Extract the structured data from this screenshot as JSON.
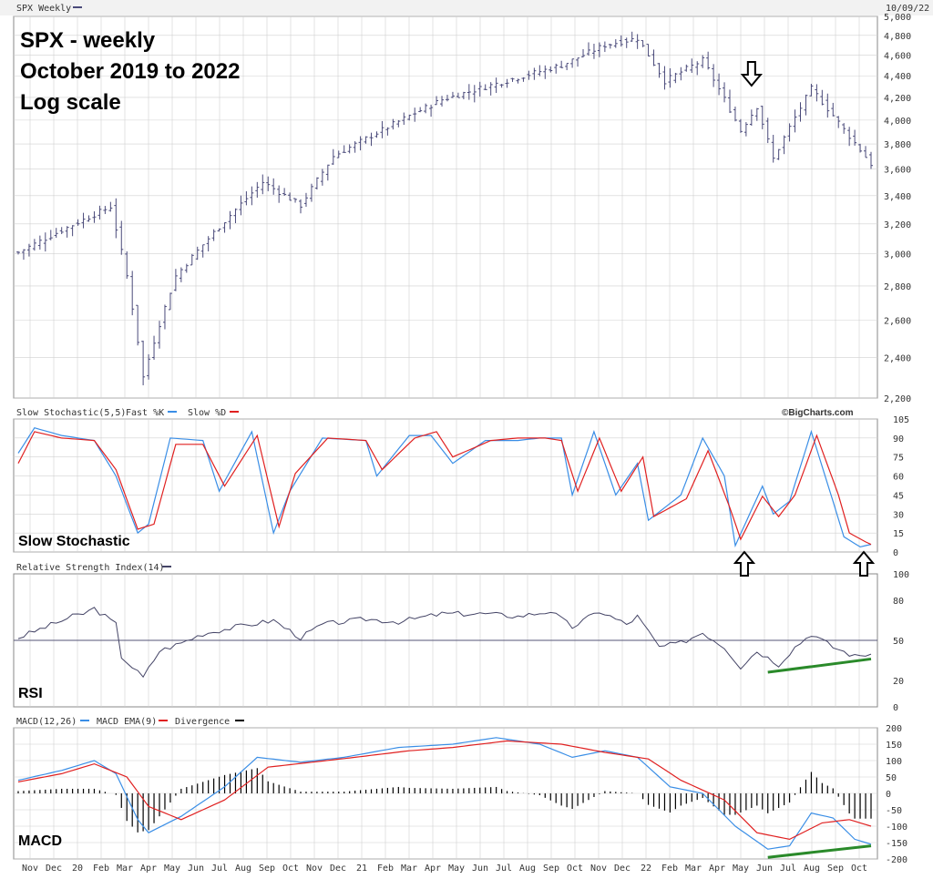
{
  "header": {
    "symbol_label": "SPX Weekly",
    "date_label": "10/09/22",
    "credit": "©BigCharts.com"
  },
  "annotations": {
    "title_line1": "SPX - weekly",
    "title_line2": "October 2019 to 2022",
    "title_line3": "Log scale",
    "stoch_label": "Slow Stochastic",
    "rsi_label": "RSI",
    "macd_label": "MACD"
  },
  "colors": {
    "price_bar": "#4a4a7a",
    "grid": "#d0d0d0",
    "fast_k": "#3a8ee6",
    "slow_d": "#e02020",
    "rsi_line": "#444466",
    "divergence": "#000000",
    "trend_line": "#2a8a2a",
    "panel_border": "#888888"
  },
  "chart_data": [
    {
      "type": "ohlc",
      "title": "SPX Weekly",
      "scale": "log",
      "ylim": [
        2200,
        5000
      ],
      "yticks": [
        2200,
        2400,
        2600,
        2800,
        3000,
        3200,
        3400,
        3600,
        3800,
        4000,
        4200,
        4400,
        4600,
        4800,
        5000
      ],
      "ytick_labels": [
        "2,200",
        "2,400",
        "2,600",
        "2,800",
        "3,000",
        "3,200",
        "3,400",
        "3,600",
        "3,800",
        "4,000",
        "4,200",
        "4,400",
        "4,600",
        "4,800",
        "5,000"
      ],
      "x_labels": [
        "Nov",
        "Dec",
        "20",
        "Feb",
        "Mar",
        "Apr",
        "May",
        "Jun",
        "Jul",
        "Aug",
        "Sep",
        "Oct",
        "Nov",
        "Dec",
        "21",
        "Feb",
        "Mar",
        "Apr",
        "May",
        "Jun",
        "Jul",
        "Aug",
        "Sep",
        "Oct",
        "Nov",
        "Dec",
        "22",
        "Feb",
        "Mar",
        "Apr",
        "May",
        "Jun",
        "Jul",
        "Aug",
        "Sep",
        "Oct"
      ],
      "weeks": 158,
      "key_closes": [
        {
          "week": 0,
          "value": 3010
        },
        {
          "week": 17,
          "value": 3320
        },
        {
          "week": 20,
          "value": 2860
        },
        {
          "week": 23,
          "value": 2300
        },
        {
          "week": 29,
          "value": 2860
        },
        {
          "week": 45,
          "value": 3500
        },
        {
          "week": 52,
          "value": 3330
        },
        {
          "week": 58,
          "value": 3700
        },
        {
          "week": 78,
          "value": 4180
        },
        {
          "week": 100,
          "value": 4500
        },
        {
          "week": 108,
          "value": 4700
        },
        {
          "week": 114,
          "value": 4770
        },
        {
          "week": 119,
          "value": 4350
        },
        {
          "week": 126,
          "value": 4550
        },
        {
          "week": 133,
          "value": 3910
        },
        {
          "week": 136,
          "value": 4120
        },
        {
          "week": 139,
          "value": 3680
        },
        {
          "week": 146,
          "value": 4280
        },
        {
          "week": 152,
          "value": 3920
        },
        {
          "week": 157,
          "value": 3640
        }
      ],
      "arrows": [
        {
          "week": 135,
          "direction": "down"
        }
      ]
    },
    {
      "type": "line",
      "title": "Slow Stochastic(5,5) Fast %K Slow %D",
      "ylim": [
        0,
        105
      ],
      "yticks": [
        0,
        15,
        30,
        45,
        60,
        75,
        90,
        105
      ],
      "legend_items": [
        "Slow Stochastic(5,5)",
        "Fast %K",
        "Slow %D"
      ],
      "series": [
        {
          "name": "Fast %K",
          "key_points": [
            {
              "week": 0,
              "value": 78
            },
            {
              "week": 3,
              "value": 98
            },
            {
              "week": 8,
              "value": 92
            },
            {
              "week": 14,
              "value": 88
            },
            {
              "week": 18,
              "value": 60
            },
            {
              "week": 22,
              "value": 15
            },
            {
              "week": 24,
              "value": 22
            },
            {
              "week": 28,
              "value": 90
            },
            {
              "week": 34,
              "value": 88
            },
            {
              "week": 37,
              "value": 48
            },
            {
              "week": 43,
              "value": 95
            },
            {
              "week": 47,
              "value": 15
            },
            {
              "week": 50,
              "value": 48
            },
            {
              "week": 56,
              "value": 90
            },
            {
              "week": 64,
              "value": 88
            },
            {
              "week": 66,
              "value": 60
            },
            {
              "week": 72,
              "value": 92
            },
            {
              "week": 76,
              "value": 92
            },
            {
              "week": 80,
              "value": 70
            },
            {
              "week": 86,
              "value": 88
            },
            {
              "week": 92,
              "value": 88
            },
            {
              "week": 96,
              "value": 90
            },
            {
              "week": 100,
              "value": 90
            },
            {
              "week": 102,
              "value": 45
            },
            {
              "week": 106,
              "value": 95
            },
            {
              "week": 110,
              "value": 45
            },
            {
              "week": 114,
              "value": 70
            },
            {
              "week": 116,
              "value": 25
            },
            {
              "week": 122,
              "value": 45
            },
            {
              "week": 126,
              "value": 90
            },
            {
              "week": 130,
              "value": 60
            },
            {
              "week": 132,
              "value": 5
            },
            {
              "week": 137,
              "value": 52
            },
            {
              "week": 139,
              "value": 30
            },
            {
              "week": 142,
              "value": 40
            },
            {
              "week": 146,
              "value": 95
            },
            {
              "week": 150,
              "value": 40
            },
            {
              "week": 152,
              "value": 12
            },
            {
              "week": 155,
              "value": 4
            },
            {
              "week": 157,
              "value": 6
            }
          ]
        },
        {
          "name": "Slow %D",
          "key_points": [
            {
              "week": 0,
              "value": 70
            },
            {
              "week": 3,
              "value": 95
            },
            {
              "week": 8,
              "value": 90
            },
            {
              "week": 14,
              "value": 88
            },
            {
              "week": 18,
              "value": 65
            },
            {
              "week": 22,
              "value": 18
            },
            {
              "week": 25,
              "value": 22
            },
            {
              "week": 29,
              "value": 85
            },
            {
              "week": 34,
              "value": 85
            },
            {
              "week": 38,
              "value": 52
            },
            {
              "week": 44,
              "value": 92
            },
            {
              "week": 48,
              "value": 20
            },
            {
              "week": 51,
              "value": 62
            },
            {
              "week": 57,
              "value": 90
            },
            {
              "week": 64,
              "value": 88
            },
            {
              "week": 67,
              "value": 65
            },
            {
              "week": 73,
              "value": 90
            },
            {
              "week": 77,
              "value": 95
            },
            {
              "week": 80,
              "value": 75
            },
            {
              "week": 87,
              "value": 88
            },
            {
              "week": 92,
              "value": 90
            },
            {
              "week": 97,
              "value": 90
            },
            {
              "week": 100,
              "value": 88
            },
            {
              "week": 103,
              "value": 48
            },
            {
              "week": 107,
              "value": 90
            },
            {
              "week": 111,
              "value": 48
            },
            {
              "week": 115,
              "value": 75
            },
            {
              "week": 117,
              "value": 28
            },
            {
              "week": 123,
              "value": 42
            },
            {
              "week": 127,
              "value": 80
            },
            {
              "week": 131,
              "value": 35
            },
            {
              "week": 133,
              "value": 10
            },
            {
              "week": 137,
              "value": 44
            },
            {
              "week": 140,
              "value": 28
            },
            {
              "week": 143,
              "value": 45
            },
            {
              "week": 147,
              "value": 92
            },
            {
              "week": 151,
              "value": 45
            },
            {
              "week": 153,
              "value": 15
            },
            {
              "week": 156,
              "value": 8
            },
            {
              "week": 157,
              "value": 6
            }
          ]
        }
      ],
      "arrows": [
        {
          "week": 132,
          "direction": "up"
        },
        {
          "week": 155,
          "direction": "up"
        }
      ]
    },
    {
      "type": "line",
      "title": "Relative Strength Index(14)",
      "ylim": [
        0,
        100
      ],
      "yticks": [
        0,
        20,
        50,
        80,
        100
      ],
      "reference_line": 50,
      "series": [
        {
          "name": "Relative Strength Index(14)",
          "key_points": [
            {
              "week": 0,
              "value": 52
            },
            {
              "week": 5,
              "value": 60
            },
            {
              "week": 10,
              "value": 68
            },
            {
              "week": 12,
              "value": 70
            },
            {
              "week": 14,
              "value": 74
            },
            {
              "week": 18,
              "value": 62
            },
            {
              "week": 19,
              "value": 38
            },
            {
              "week": 21,
              "value": 30
            },
            {
              "week": 23,
              "value": 22
            },
            {
              "week": 26,
              "value": 42
            },
            {
              "week": 30,
              "value": 48
            },
            {
              "week": 34,
              "value": 55
            },
            {
              "week": 40,
              "value": 60
            },
            {
              "week": 47,
              "value": 65
            },
            {
              "week": 52,
              "value": 52
            },
            {
              "week": 56,
              "value": 62
            },
            {
              "week": 64,
              "value": 66
            },
            {
              "week": 70,
              "value": 64
            },
            {
              "week": 78,
              "value": 70
            },
            {
              "week": 86,
              "value": 70
            },
            {
              "week": 92,
              "value": 68
            },
            {
              "week": 98,
              "value": 72
            },
            {
              "week": 102,
              "value": 60
            },
            {
              "week": 107,
              "value": 72
            },
            {
              "week": 112,
              "value": 62
            },
            {
              "week": 114,
              "value": 68
            },
            {
              "week": 118,
              "value": 45
            },
            {
              "week": 122,
              "value": 48
            },
            {
              "week": 126,
              "value": 56
            },
            {
              "week": 130,
              "value": 45
            },
            {
              "week": 133,
              "value": 30
            },
            {
              "week": 136,
              "value": 42
            },
            {
              "week": 140,
              "value": 32
            },
            {
              "week": 143,
              "value": 45
            },
            {
              "week": 146,
              "value": 55
            },
            {
              "week": 150,
              "value": 45
            },
            {
              "week": 154,
              "value": 38
            },
            {
              "week": 157,
              "value": 40
            }
          ]
        }
      ],
      "trend_line": {
        "start": {
          "week": 138,
          "value": 26
        },
        "end": {
          "week": 157,
          "value": 36
        }
      }
    },
    {
      "type": "line",
      "title": "MACD(12,26) MACD EMA(9) Divergence",
      "ylim": [
        -200,
        200
      ],
      "yticks": [
        -200,
        -150,
        -100,
        -50,
        0,
        50,
        100,
        150,
        200
      ],
      "legend_items": [
        "MACD(12,26)",
        "MACD EMA(9)",
        "Divergence"
      ],
      "series": [
        {
          "name": "MACD(12,26)",
          "key_points": [
            {
              "week": 0,
              "value": 40
            },
            {
              "week": 8,
              "value": 70
            },
            {
              "week": 14,
              "value": 100
            },
            {
              "week": 18,
              "value": 60
            },
            {
              "week": 22,
              "value": -80
            },
            {
              "week": 24,
              "value": -120
            },
            {
              "week": 30,
              "value": -70
            },
            {
              "week": 38,
              "value": 20
            },
            {
              "week": 44,
              "value": 110
            },
            {
              "week": 52,
              "value": 95
            },
            {
              "week": 60,
              "value": 110
            },
            {
              "week": 70,
              "value": 140
            },
            {
              "week": 80,
              "value": 150
            },
            {
              "week": 88,
              "value": 170
            },
            {
              "week": 96,
              "value": 150
            },
            {
              "week": 102,
              "value": 110
            },
            {
              "week": 108,
              "value": 130
            },
            {
              "week": 114,
              "value": 110
            },
            {
              "week": 120,
              "value": 20
            },
            {
              "week": 126,
              "value": 0
            },
            {
              "week": 132,
              "value": -100
            },
            {
              "week": 138,
              "value": -170
            },
            {
              "week": 142,
              "value": -160
            },
            {
              "week": 146,
              "value": -60
            },
            {
              "week": 150,
              "value": -75
            },
            {
              "week": 154,
              "value": -140
            },
            {
              "week": 157,
              "value": -155
            }
          ]
        },
        {
          "name": "MACD EMA(9)",
          "key_points": [
            {
              "week": 0,
              "value": 35
            },
            {
              "week": 8,
              "value": 60
            },
            {
              "week": 14,
              "value": 90
            },
            {
              "week": 20,
              "value": 50
            },
            {
              "week": 24,
              "value": -40
            },
            {
              "week": 30,
              "value": -80
            },
            {
              "week": 38,
              "value": -20
            },
            {
              "week": 46,
              "value": 80
            },
            {
              "week": 54,
              "value": 95
            },
            {
              "week": 62,
              "value": 110
            },
            {
              "week": 72,
              "value": 130
            },
            {
              "week": 80,
              "value": 140
            },
            {
              "week": 90,
              "value": 160
            },
            {
              "week": 100,
              "value": 150
            },
            {
              "week": 108,
              "value": 125
            },
            {
              "week": 116,
              "value": 105
            },
            {
              "week": 122,
              "value": 40
            },
            {
              "week": 130,
              "value": -20
            },
            {
              "week": 136,
              "value": -120
            },
            {
              "week": 142,
              "value": -140
            },
            {
              "week": 148,
              "value": -90
            },
            {
              "week": 153,
              "value": -80
            },
            {
              "week": 157,
              "value": -100
            }
          ]
        }
      ],
      "trend_line": {
        "start": {
          "week": 138,
          "value": -195
        },
        "end": {
          "week": 157,
          "value": -160
        }
      }
    }
  ]
}
